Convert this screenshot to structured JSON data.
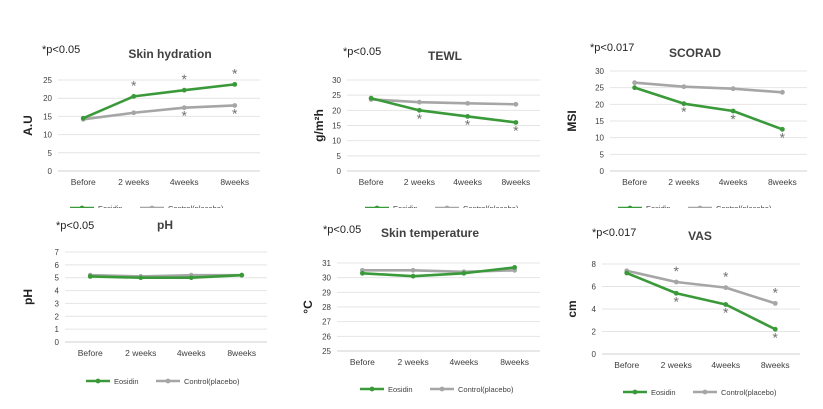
{
  "colors": {
    "eosidin": "#3a9a3a",
    "control": "#a6a6a6",
    "axis": "#d0d0d0",
    "grid": "#e4e4e4",
    "text": "#404040",
    "star": "#707070"
  },
  "chart_data": [
    {
      "type": "line",
      "title": "Skin hydration",
      "note": "*p<0.05",
      "ylabel": "A.U",
      "categories": [
        "Before",
        "2 weeks",
        "4weeks",
        "8weeks"
      ],
      "ylim": [
        0,
        25
      ],
      "yticks": [
        0,
        5,
        10,
        15,
        20,
        25
      ],
      "series": [
        {
          "name": "Eosidin",
          "values": [
            14.5,
            20.5,
            22.2,
            23.8
          ],
          "stars": [
            false,
            true,
            true,
            true
          ]
        },
        {
          "name": "Control(placebo)",
          "values": [
            14.2,
            16.0,
            17.4,
            18.0
          ],
          "stars": [
            false,
            false,
            true,
            true
          ]
        }
      ],
      "legend_position": "bottom"
    },
    {
      "type": "line",
      "title": "TEWL",
      "note": "*p<0.05",
      "ylabel": "g/m²h",
      "categories": [
        "Before",
        "2 weeks",
        "4weeks",
        "8weeks"
      ],
      "ylim": [
        0,
        30
      ],
      "yticks": [
        0,
        5,
        10,
        15,
        20,
        25,
        30
      ],
      "series": [
        {
          "name": "Eosidin",
          "values": [
            24.0,
            20.0,
            18.0,
            16.0
          ],
          "stars": [
            false,
            true,
            true,
            true
          ]
        },
        {
          "name": "Control(placebo)",
          "values": [
            23.6,
            22.7,
            22.3,
            22.0
          ],
          "stars": [
            false,
            false,
            false,
            false
          ]
        }
      ],
      "legend_position": "bottom"
    },
    {
      "type": "line",
      "title": "SCORAD",
      "note": "*p<0.017",
      "ylabel": "MSI",
      "categories": [
        "Before",
        "2 weeks",
        "4weeks",
        "8weeks"
      ],
      "ylim": [
        0,
        30
      ],
      "yticks": [
        0,
        5,
        10,
        15,
        20,
        25,
        30
      ],
      "series": [
        {
          "name": "Eosidin",
          "values": [
            25.0,
            20.2,
            18.0,
            12.5
          ],
          "stars": [
            false,
            true,
            true,
            true
          ]
        },
        {
          "name": "Control(placebo)",
          "values": [
            26.5,
            25.3,
            24.7,
            23.6
          ],
          "stars": [
            false,
            false,
            false,
            false
          ]
        }
      ],
      "legend_position": "bottom"
    },
    {
      "type": "line",
      "title": "pH",
      "note": "*p<0.05",
      "ylabel": "pH",
      "categories": [
        "Before",
        "2 weeks",
        "4weeks",
        "8weeks"
      ],
      "ylim": [
        0,
        7
      ],
      "yticks": [
        0,
        1,
        2,
        3,
        4,
        5,
        6,
        7
      ],
      "series": [
        {
          "name": "Eosidin",
          "values": [
            5.1,
            5.0,
            5.0,
            5.2
          ],
          "stars": [
            false,
            false,
            false,
            false
          ]
        },
        {
          "name": "Control(placebo)",
          "values": [
            5.2,
            5.1,
            5.2,
            5.2
          ],
          "stars": [
            false,
            false,
            false,
            false
          ]
        }
      ],
      "legend_position": "bottom"
    },
    {
      "type": "line",
      "title": "Skin temperature",
      "note": "*p<0.05",
      "ylabel": "°C",
      "categories": [
        "Before",
        "2 weeks",
        "4weeks",
        "8weeks"
      ],
      "ylim": [
        25,
        31
      ],
      "yticks": [
        25,
        26,
        27,
        28,
        29,
        30,
        31
      ],
      "series": [
        {
          "name": "Eosidin",
          "values": [
            30.3,
            30.1,
            30.3,
            30.7
          ],
          "stars": [
            false,
            false,
            false,
            false
          ]
        },
        {
          "name": "Control(placebo)",
          "values": [
            30.5,
            30.5,
            30.4,
            30.5
          ],
          "stars": [
            false,
            false,
            false,
            false
          ]
        }
      ],
      "legend_position": "bottom"
    },
    {
      "type": "line",
      "title": "VAS",
      "note": "*p<0.017",
      "ylabel": "cm",
      "categories": [
        "Before",
        "2 weeks",
        "4weeks",
        "8weeks"
      ],
      "ylim": [
        0,
        8
      ],
      "yticks": [
        0,
        2,
        4,
        6,
        8
      ],
      "series": [
        {
          "name": "Eosidin",
          "values": [
            7.2,
            5.4,
            4.4,
            2.2
          ],
          "stars": [
            false,
            true,
            true,
            true
          ]
        },
        {
          "name": "Control(placebo)",
          "values": [
            7.4,
            6.4,
            5.9,
            4.5
          ],
          "stars": [
            false,
            true,
            true,
            true
          ]
        }
      ],
      "legend_position": "bottom"
    }
  ]
}
